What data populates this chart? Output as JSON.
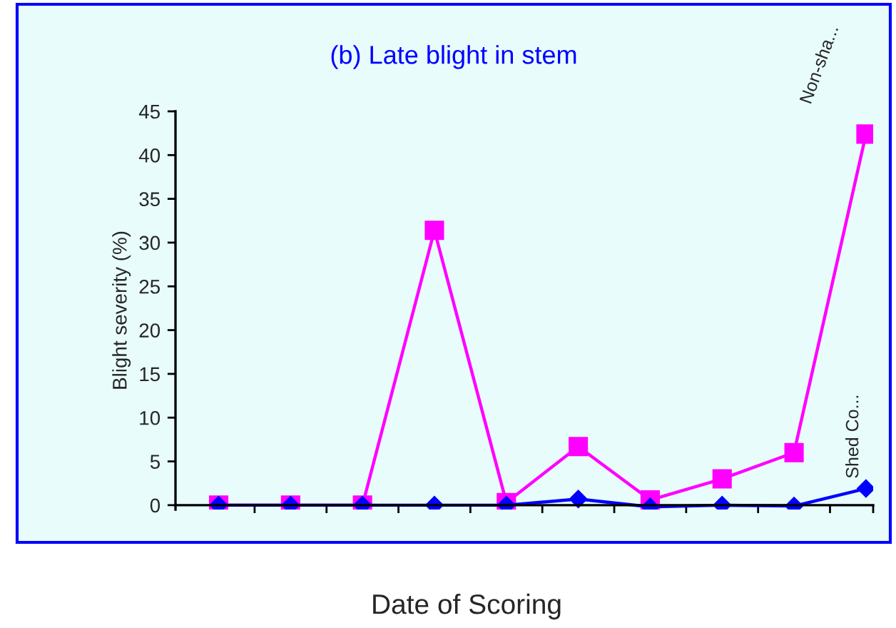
{
  "chart_data": {
    "type": "line",
    "title": "(b) Late blight in stem",
    "xlabel": "Date of Scoring",
    "ylabel": "Blight severity (%)",
    "categories": [
      null,
      null,
      null,
      null,
      null,
      null,
      null,
      null,
      null,
      null
    ],
    "series": [
      {
        "name": "Non-sha...",
        "color": "#ff00ff",
        "marker": "square",
        "values": [
          0,
          0,
          0,
          31.4,
          0.3,
          6.7,
          0.6,
          3,
          6,
          42.4
        ]
      },
      {
        "name": "Shed Co...",
        "color": "#0000ff",
        "marker": "diamond",
        "values": [
          0,
          0,
          0,
          0,
          0,
          0.7,
          -0.2,
          0,
          -0.1,
          1.9
        ]
      }
    ],
    "ylim": [
      -0.5,
      45
    ],
    "yticks": [
      0,
      5,
      10,
      15,
      20,
      25,
      30,
      35,
      40,
      45
    ],
    "legend": false,
    "line_style": "solid"
  }
}
